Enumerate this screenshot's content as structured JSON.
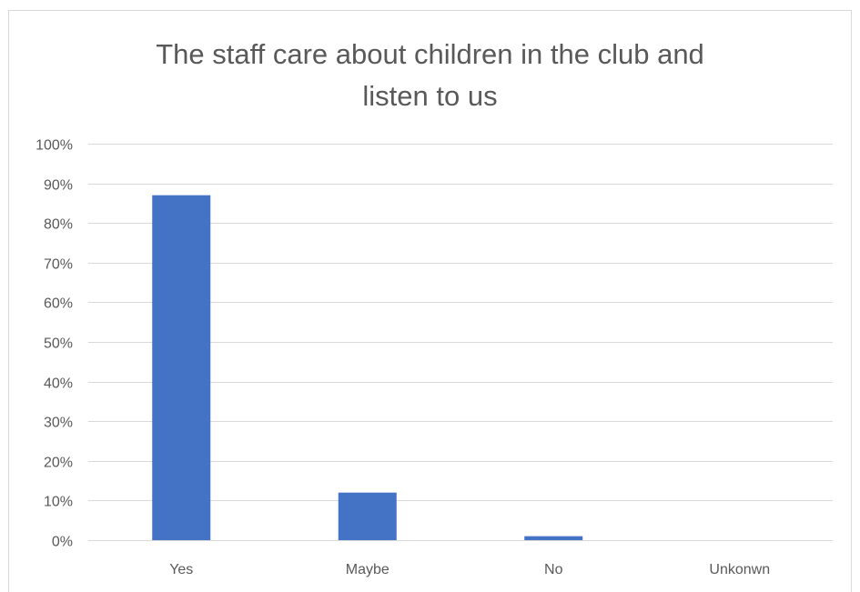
{
  "chart_data": {
    "type": "bar",
    "title_lines": [
      "The staff care about children in the club and",
      "listen to us"
    ],
    "categories": [
      "Yes",
      "Maybe",
      "No",
      "Unkonwn"
    ],
    "values": [
      0.87,
      0.12,
      0.01,
      0
    ],
    "ylim": [
      0,
      1
    ],
    "yticks": [
      0,
      0.1,
      0.2,
      0.3,
      0.4,
      0.5,
      0.6,
      0.7,
      0.8,
      0.9,
      1.0
    ],
    "ytick_labels": [
      "0%",
      "10%",
      "20%",
      "30%",
      "40%",
      "50%",
      "60%",
      "70%",
      "80%",
      "90%",
      "100%"
    ],
    "grid": true,
    "legend": "none",
    "colors": {
      "bar": "#4472c4",
      "grid": "#d9d9d9",
      "text": "#595959"
    }
  }
}
